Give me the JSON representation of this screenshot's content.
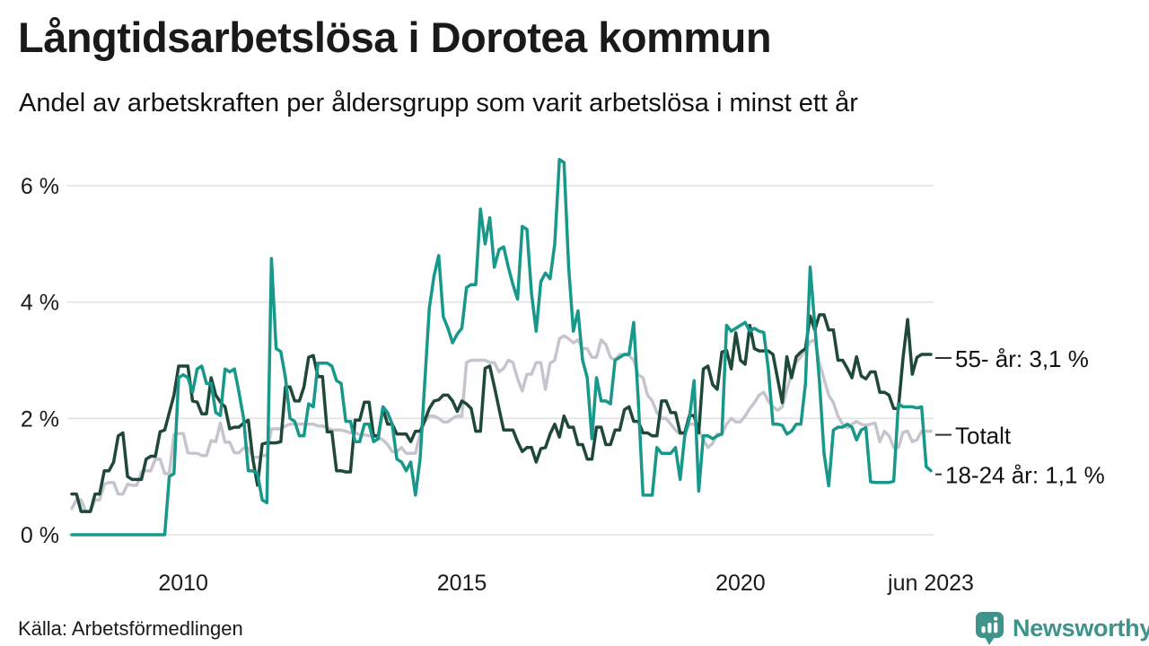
{
  "header": {
    "title": "Långtidsarbetslösa i Dorotea kommun",
    "subtitle": "Andel av arbetskraften per åldersgrupp som varit arbetslösa i minst ett år"
  },
  "footer": {
    "source": "Källa: Arbetsförmedlingen",
    "brand": "Newsworthy",
    "brand_icon": "bar-chart-speech-bubble-icon",
    "brand_color": "#3f938b"
  },
  "colors": {
    "series_18_24": "#17988a",
    "series_55_plus": "#1f4839",
    "series_total": "#c6c5ce",
    "gridline": "#e3e3e3",
    "text": "#1a1a1a",
    "callout_dash": "#333333"
  },
  "chart_data": {
    "type": "line",
    "title": "Långtidsarbetslösa i Dorotea kommun",
    "subtitle": "Andel av arbetskraften per åldersgrupp som varit arbetslösa i minst ett år",
    "x_unit": "month",
    "x_start": "2008-01",
    "x_end": "2023-06",
    "ylim": [
      0,
      6.6
    ],
    "grid": true,
    "y_ticks": [
      {
        "label": "0 %",
        "value": 0
      },
      {
        "label": "2 %",
        "value": 2
      },
      {
        "label": "4 %",
        "value": 4
      },
      {
        "label": "6 %",
        "value": 6
      }
    ],
    "x_ticks": [
      {
        "label": "2010",
        "month_index": 24
      },
      {
        "label": "2015",
        "month_index": 84
      },
      {
        "label": "2020",
        "month_index": 144
      },
      {
        "label": "jun 2023",
        "month_index": 185
      }
    ],
    "legend_position": "right-end-labels",
    "series": [
      {
        "name": "Totalt",
        "end_label": "Totalt",
        "end_value_label": null,
        "color": "#c6c5ce",
        "dash_length": 18,
        "values": [
          0.45,
          0.6,
          0.6,
          0.4,
          0.4,
          0.6,
          0.6,
          0.87,
          0.9,
          0.9,
          0.7,
          0.7,
          0.87,
          0.85,
          0.85,
          1.08,
          1.1,
          1.1,
          1.3,
          1.3,
          1.05,
          1.05,
          1.72,
          1.74,
          1.74,
          1.41,
          1.4,
          1.4,
          1.36,
          1.36,
          1.62,
          1.6,
          1.92,
          1.59,
          1.59,
          1.41,
          1.41,
          1.49,
          1.49,
          1.33,
          1.33,
          1.36,
          1.36,
          1.82,
          1.82,
          1.82,
          1.87,
          1.9,
          1.9,
          1.9,
          1.9,
          1.9,
          1.9,
          1.87,
          1.87,
          1.84,
          1.8,
          1.8,
          1.8,
          1.78,
          1.75,
          1.75,
          1.72,
          1.72,
          1.7,
          1.7,
          1.67,
          1.63,
          1.55,
          1.43,
          1.43,
          1.5,
          1.4,
          1.4,
          1.4,
          1.73,
          1.94,
          2.04,
          2.04,
          2.0,
          1.94,
          1.94,
          2.0,
          2.04,
          2.04,
          2.96,
          3.0,
          3.0,
          3.0,
          3.0,
          2.96,
          2.96,
          2.8,
          2.86,
          3.0,
          2.96,
          2.68,
          2.47,
          2.76,
          2.76,
          2.96,
          2.96,
          2.5,
          2.95,
          3.0,
          3.37,
          3.42,
          3.37,
          3.3,
          3.35,
          3.2,
          3.2,
          3.05,
          3.05,
          3.35,
          3.27,
          3.05,
          3.0,
          3.1,
          3.1,
          3.08,
          3.0,
          2.75,
          2.7,
          2.4,
          2.3,
          2.1,
          2.0,
          2.0,
          1.9,
          1.8,
          1.73,
          1.75,
          1.9,
          1.9,
          1.8,
          1.63,
          1.5,
          1.57,
          1.73,
          1.73,
          1.9,
          2.0,
          1.94,
          1.94,
          2.04,
          2.17,
          2.27,
          2.4,
          2.45,
          2.3,
          2.2,
          2.14,
          2.2,
          2.5,
          2.76,
          2.96,
          3.06,
          3.17,
          3.32,
          3.35,
          2.96,
          2.68,
          2.4,
          2.27,
          2.04,
          1.9,
          1.84,
          1.9,
          1.95,
          1.9,
          1.88,
          1.9,
          1.92,
          1.6,
          1.78,
          1.7,
          1.5,
          1.5,
          1.76,
          1.78,
          1.6,
          1.63,
          1.78,
          1.78,
          1.78
        ]
      },
      {
        "name": "55- år",
        "end_label": "55- år: 3,1 %",
        "end_value_label": "3,1 %",
        "color": "#1f4839",
        "dash_length": 18,
        "values": [
          0.7,
          0.7,
          0.4,
          0.4,
          0.4,
          0.7,
          0.7,
          1.1,
          1.1,
          1.25,
          1.7,
          1.75,
          1.0,
          0.95,
          0.95,
          0.95,
          1.3,
          1.35,
          1.35,
          1.77,
          1.8,
          2.1,
          2.4,
          2.9,
          2.9,
          2.9,
          2.3,
          2.28,
          2.08,
          2.08,
          2.7,
          2.4,
          2.28,
          2.2,
          1.82,
          1.85,
          1.85,
          1.92,
          1.97,
          1.3,
          0.85,
          1.56,
          1.58,
          1.58,
          1.58,
          1.6,
          2.54,
          2.54,
          2.3,
          2.3,
          2.54,
          3.05,
          3.08,
          2.72,
          2.72,
          1.77,
          1.77,
          1.1,
          1.1,
          1.08,
          1.08,
          1.97,
          1.97,
          2.28,
          2.28,
          1.7,
          1.7,
          2.17,
          1.9,
          1.9,
          1.73,
          1.73,
          1.73,
          1.6,
          1.78,
          1.78,
          1.96,
          2.17,
          2.3,
          2.32,
          2.4,
          2.4,
          2.3,
          2.12,
          2.3,
          2.25,
          2.17,
          1.78,
          1.78,
          2.86,
          2.9,
          2.55,
          2.17,
          1.8,
          1.8,
          1.8,
          1.6,
          1.43,
          1.5,
          1.5,
          1.25,
          1.48,
          1.5,
          1.73,
          1.9,
          1.68,
          2.04,
          1.85,
          1.85,
          1.55,
          1.55,
          1.3,
          1.3,
          1.85,
          1.85,
          1.55,
          1.55,
          1.8,
          1.8,
          2.15,
          2.2,
          1.95,
          1.95,
          1.75,
          1.75,
          1.7,
          1.7,
          2.3,
          2.3,
          2.1,
          2.1,
          1.75,
          1.75,
          2.05,
          2.05,
          1.75,
          2.85,
          2.9,
          2.58,
          2.5,
          3.14,
          3.17,
          2.85,
          3.47,
          3.0,
          2.93,
          3.6,
          3.2,
          3.16,
          3.16,
          3.16,
          3.1,
          2.68,
          2.27,
          3.06,
          2.7,
          3.06,
          3.14,
          3.2,
          3.76,
          3.52,
          3.78,
          3.78,
          3.52,
          3.52,
          3.0,
          3.0,
          2.86,
          2.7,
          3.06,
          2.73,
          2.68,
          2.8,
          2.8,
          2.45,
          2.45,
          2.4,
          2.17,
          2.17,
          3.04,
          3.7,
          2.76,
          3.05,
          3.1,
          3.1,
          3.1
        ]
      },
      {
        "name": "18-24 år",
        "end_label": "18-24 år: 1,1 %",
        "end_value_label": "1,1 %",
        "color": "#17988a",
        "dash_length": 7,
        "values": [
          0,
          0,
          0,
          0,
          0,
          0,
          0,
          0,
          0,
          0,
          0,
          0,
          0,
          0,
          0,
          0,
          0,
          0,
          0,
          0,
          0,
          1.0,
          1.05,
          2.7,
          2.75,
          2.7,
          2.45,
          2.85,
          2.9,
          2.6,
          2.6,
          2.1,
          2.05,
          2.85,
          2.8,
          2.85,
          2.45,
          2.0,
          1.1,
          1.1,
          1.05,
          0.6,
          0.55,
          4.75,
          3.2,
          3.15,
          2.7,
          2.0,
          1.95,
          1.7,
          1.7,
          2.25,
          2.2,
          2.95,
          2.95,
          2.95,
          2.9,
          2.65,
          2.6,
          1.95,
          1.95,
          1.6,
          1.6,
          1.9,
          1.9,
          1.6,
          1.65,
          2.2,
          2.1,
          1.9,
          1.3,
          1.25,
          1.1,
          1.25,
          0.68,
          1.3,
          2.6,
          3.9,
          4.45,
          4.8,
          3.75,
          3.55,
          3.3,
          3.45,
          3.55,
          4.25,
          4.3,
          4.3,
          5.6,
          5.0,
          5.45,
          4.6,
          4.9,
          4.95,
          4.6,
          4.3,
          4.05,
          5.3,
          5.25,
          4.15,
          3.5,
          4.35,
          4.5,
          4.4,
          5.0,
          6.45,
          6.4,
          4.6,
          3.5,
          3.85,
          3.0,
          2.7,
          1.65,
          2.7,
          2.3,
          2.3,
          2.25,
          3.0,
          3.05,
          3.1,
          3.1,
          3.65,
          2.3,
          0.68,
          0.68,
          0.68,
          1.5,
          1.4,
          1.4,
          1.4,
          1.5,
          0.95,
          1.7,
          2.0,
          2.65,
          0.75,
          1.7,
          1.7,
          1.65,
          1.7,
          1.73,
          3.6,
          3.5,
          3.55,
          3.6,
          3.65,
          3.5,
          3.55,
          3.5,
          3.48,
          2.85,
          1.9,
          1.9,
          1.88,
          1.73,
          1.78,
          1.9,
          1.9,
          2.6,
          4.6,
          3.6,
          2.65,
          1.4,
          0.84,
          1.8,
          1.85,
          1.85,
          1.9,
          1.85,
          1.63,
          1.8,
          1.84,
          0.91,
          0.9,
          0.9,
          0.9,
          0.9,
          0.92,
          2.25,
          2.2,
          2.2,
          2.2,
          2.18,
          2.2,
          1.17,
          1.1
        ]
      }
    ]
  }
}
